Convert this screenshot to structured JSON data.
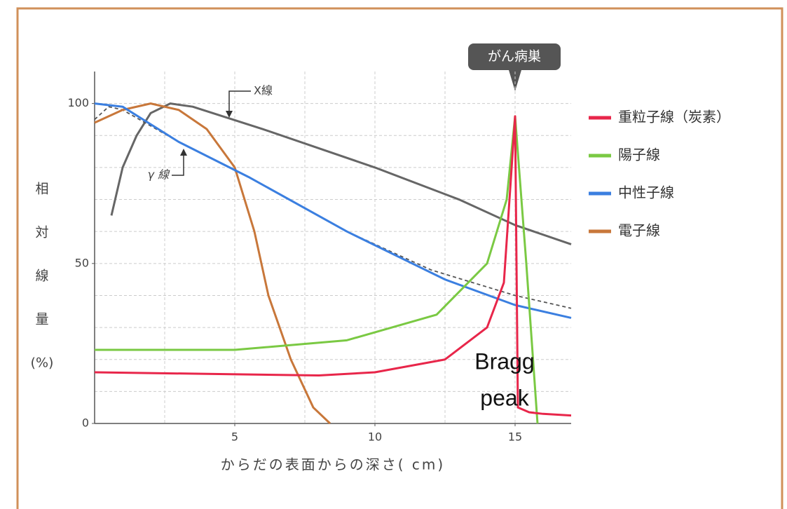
{
  "chart_data": {
    "type": "line",
    "xlabel": "からだの表面からの深さ( cm)",
    "ylabel_lines": [
      "相",
      "対",
      "線",
      "量",
      "(%)"
    ],
    "xlim": [
      0,
      17
    ],
    "ylim": [
      0,
      110
    ],
    "xticks": [
      5,
      10,
      15
    ],
    "yticks": [
      0,
      50,
      100
    ],
    "xgrid": [
      2.5,
      5,
      7.5,
      10,
      12.5,
      15
    ],
    "ygrid": [
      10,
      20,
      30,
      40,
      50,
      60,
      70,
      80,
      90,
      100
    ],
    "grid": true,
    "legend": "right",
    "series": [
      {
        "name": "重粒子線（炭素）",
        "color": "#e8264a",
        "in_legend": true,
        "x": [
          0,
          4,
          8,
          10,
          12.5,
          14,
          14.6,
          15,
          15.1,
          15.5,
          16,
          17
        ],
        "values": [
          16,
          15.5,
          15,
          16,
          20,
          30,
          44,
          96,
          5,
          3.5,
          3,
          2.5
        ]
      },
      {
        "name": "陽子線",
        "color": "#7ac943",
        "in_legend": true,
        "x": [
          0,
          5,
          9,
          12.2,
          14,
          14.7,
          15,
          15.4,
          15.8
        ],
        "values": [
          23,
          23,
          26,
          34,
          50,
          70,
          96,
          50,
          0
        ]
      },
      {
        "name": "中性子線",
        "color": "#3b7fe0",
        "in_legend": true,
        "x": [
          0,
          1,
          3,
          5.5,
          9,
          12.5,
          15,
          17
        ],
        "values": [
          100,
          99,
          88,
          77,
          60,
          45,
          37,
          33
        ]
      },
      {
        "name": "電子線",
        "color": "#c8773a",
        "in_legend": true,
        "x": [
          0,
          1,
          2,
          3,
          4,
          5,
          5.7,
          6.2,
          7,
          7.8,
          8.4
        ],
        "values": [
          94,
          98,
          100,
          98,
          92,
          80,
          60,
          40,
          20,
          5,
          0
        ]
      },
      {
        "name": "X線",
        "color": "#666666",
        "in_legend": false,
        "x": [
          0.6,
          1,
          1.5,
          2,
          2.7,
          3.5,
          6,
          10,
          13,
          15,
          17
        ],
        "values": [
          65,
          80,
          90,
          97,
          100,
          99,
          92,
          80,
          70,
          62,
          56
        ]
      },
      {
        "name": "γ 線",
        "color": "#555555",
        "in_legend": false,
        "dashed": true,
        "x": [
          0,
          0.5,
          1,
          3,
          5.5,
          9,
          12,
          15,
          17
        ],
        "values": [
          95,
          99,
          98,
          88,
          77,
          60,
          48,
          40,
          36
        ]
      }
    ],
    "callout": "がん病巣",
    "annotation_lines": [
      "Bragg",
      "peak"
    ]
  }
}
